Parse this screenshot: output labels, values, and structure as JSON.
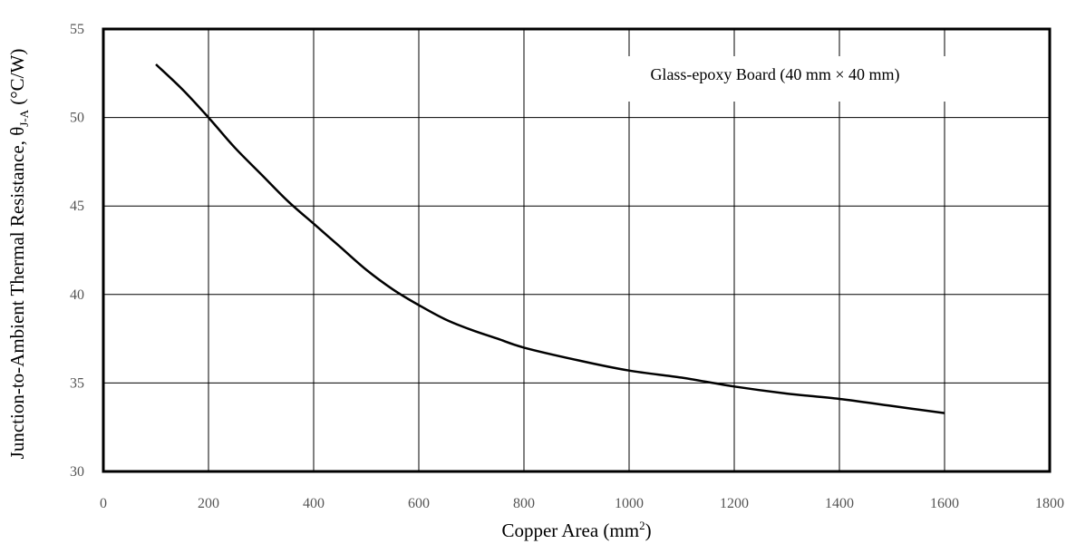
{
  "chart_data": {
    "type": "line",
    "xlabel": "Copper Area (mm",
    "xlabel_sup": "2",
    "xlabel_end": ")",
    "ylabel": "Junction-to-Ambient Thermal Resistance, θ",
    "ylabel_sub": "J-A",
    "ylabel_end": " (°C/W)",
    "annotation": "Glass-epoxy Board (40 mm × 40 mm)",
    "xlim": [
      0,
      1800
    ],
    "ylim": [
      30,
      55
    ],
    "x_ticks": [
      0,
      200,
      400,
      600,
      800,
      1000,
      1200,
      1400,
      1600,
      1800
    ],
    "y_ticks": [
      30,
      35,
      40,
      45,
      50,
      55
    ],
    "grid": true,
    "line_color": "#000000",
    "series": [
      {
        "x": [
          100,
          150,
          200,
          250,
          300,
          350,
          400,
          450,
          500,
          550,
          600,
          650,
          700,
          750,
          800,
          900,
          1000,
          1100,
          1200,
          1300,
          1400,
          1500,
          1600
        ],
        "y": [
          53.0,
          51.6,
          50.0,
          48.3,
          46.8,
          45.3,
          44.0,
          42.7,
          41.4,
          40.3,
          39.4,
          38.6,
          38.0,
          37.5,
          37.0,
          36.3,
          35.7,
          35.3,
          34.8,
          34.4,
          34.1,
          33.7,
          33.3
        ]
      }
    ]
  }
}
